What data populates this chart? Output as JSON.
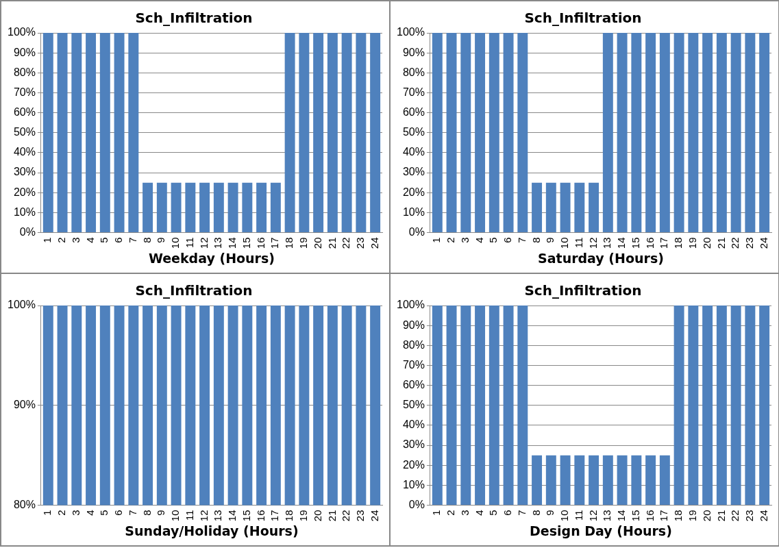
{
  "chart_data": [
    {
      "type": "bar",
      "title": "Sch_Infiltration",
      "xlabel": "Weekday (Hours)",
      "categories": [
        "1",
        "2",
        "3",
        "4",
        "5",
        "6",
        "7",
        "8",
        "9",
        "10",
        "11",
        "12",
        "13",
        "14",
        "15",
        "16",
        "17",
        "18",
        "19",
        "20",
        "21",
        "22",
        "23",
        "24"
      ],
      "values": [
        100,
        100,
        100,
        100,
        100,
        100,
        100,
        25,
        25,
        25,
        25,
        25,
        25,
        25,
        25,
        25,
        25,
        100,
        100,
        100,
        100,
        100,
        100,
        100
      ],
      "color": "#4f81bd",
      "ylim": [
        0,
        100
      ],
      "yticks": [
        {
          "value": 0,
          "label": "0%"
        },
        {
          "value": 10,
          "label": "10%"
        },
        {
          "value": 20,
          "label": "20%"
        },
        {
          "value": 30,
          "label": "30%"
        },
        {
          "value": 40,
          "label": "40%"
        },
        {
          "value": 50,
          "label": "50%"
        },
        {
          "value": 60,
          "label": "60%"
        },
        {
          "value": 70,
          "label": "70%"
        },
        {
          "value": 80,
          "label": "80%"
        },
        {
          "value": 90,
          "label": "90%"
        },
        {
          "value": 100,
          "label": "100%"
        }
      ],
      "grid": "y"
    },
    {
      "type": "bar",
      "title": "Sch_Infiltration",
      "xlabel": "Saturday (Hours)",
      "categories": [
        "1",
        "2",
        "3",
        "4",
        "5",
        "6",
        "7",
        "8",
        "9",
        "10",
        "11",
        "12",
        "13",
        "14",
        "15",
        "16",
        "17",
        "18",
        "19",
        "20",
        "21",
        "22",
        "23",
        "24"
      ],
      "values": [
        100,
        100,
        100,
        100,
        100,
        100,
        100,
        25,
        25,
        25,
        25,
        25,
        100,
        100,
        100,
        100,
        100,
        100,
        100,
        100,
        100,
        100,
        100,
        100
      ],
      "color": "#4f81bd",
      "ylim": [
        0,
        100
      ],
      "yticks": [
        {
          "value": 0,
          "label": "0%"
        },
        {
          "value": 10,
          "label": "10%"
        },
        {
          "value": 20,
          "label": "20%"
        },
        {
          "value": 30,
          "label": "30%"
        },
        {
          "value": 40,
          "label": "40%"
        },
        {
          "value": 50,
          "label": "50%"
        },
        {
          "value": 60,
          "label": "60%"
        },
        {
          "value": 70,
          "label": "70%"
        },
        {
          "value": 80,
          "label": "80%"
        },
        {
          "value": 90,
          "label": "90%"
        },
        {
          "value": 100,
          "label": "100%"
        }
      ],
      "grid": "y"
    },
    {
      "type": "bar",
      "title": "Sch_Infiltration",
      "xlabel": "Sunday/Holiday (Hours)",
      "categories": [
        "1",
        "2",
        "3",
        "4",
        "5",
        "6",
        "7",
        "8",
        "9",
        "10",
        "11",
        "12",
        "13",
        "14",
        "15",
        "16",
        "17",
        "18",
        "19",
        "20",
        "21",
        "22",
        "23",
        "24"
      ],
      "values": [
        100,
        100,
        100,
        100,
        100,
        100,
        100,
        100,
        100,
        100,
        100,
        100,
        100,
        100,
        100,
        100,
        100,
        100,
        100,
        100,
        100,
        100,
        100,
        100
      ],
      "color": "#4f81bd",
      "ylim": [
        80,
        100
      ],
      "yticks": [
        {
          "value": 80,
          "label": "80%"
        },
        {
          "value": 90,
          "label": "90%"
        },
        {
          "value": 100,
          "label": "100%"
        }
      ],
      "grid": "y"
    },
    {
      "type": "bar",
      "title": "Sch_Infiltration",
      "xlabel": "Design Day (Hours)",
      "categories": [
        "1",
        "2",
        "3",
        "4",
        "5",
        "6",
        "7",
        "8",
        "9",
        "10",
        "11",
        "12",
        "13",
        "14",
        "15",
        "16",
        "17",
        "18",
        "19",
        "20",
        "21",
        "22",
        "23",
        "24"
      ],
      "values": [
        100,
        100,
        100,
        100,
        100,
        100,
        100,
        25,
        25,
        25,
        25,
        25,
        25,
        25,
        25,
        25,
        25,
        100,
        100,
        100,
        100,
        100,
        100,
        100
      ],
      "color": "#4f81bd",
      "ylim": [
        0,
        100
      ],
      "yticks": [
        {
          "value": 0,
          "label": "0%"
        },
        {
          "value": 10,
          "label": "10%"
        },
        {
          "value": 20,
          "label": "20%"
        },
        {
          "value": 30,
          "label": "30%"
        },
        {
          "value": 40,
          "label": "40%"
        },
        {
          "value": 50,
          "label": "50%"
        },
        {
          "value": 60,
          "label": "60%"
        },
        {
          "value": 70,
          "label": "70%"
        },
        {
          "value": 80,
          "label": "80%"
        },
        {
          "value": 90,
          "label": "90%"
        },
        {
          "value": 100,
          "label": "100%"
        }
      ],
      "grid": "y"
    }
  ]
}
